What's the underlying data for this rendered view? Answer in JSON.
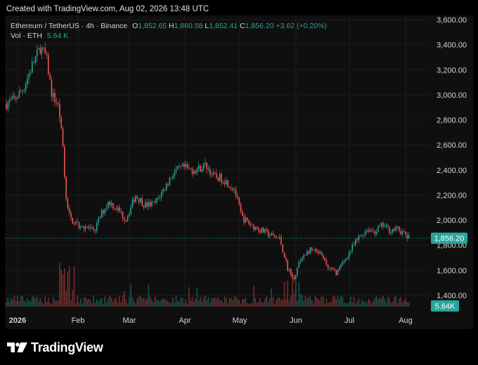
{
  "header": {
    "created_text": "Created with TradingView.com, Aug 02, 2026 13:48 UTC"
  },
  "legend": {
    "symbol": "Ethereum / TetherUS · 4h · Binance",
    "open_label": "O",
    "open": "1,852.65",
    "high_label": "H",
    "high": "1,860.58",
    "low_label": "L",
    "low": "1,852.41",
    "close_label": "C",
    "close": "1,856.20",
    "change": "+3.62 (+0.20%)",
    "volume_label": "Vol · ETH",
    "volume": "5.64 K"
  },
  "colors": {
    "up": "#26a69a",
    "down": "#ef5350",
    "background": "#0f0f0f",
    "grid": "#1c1c1c",
    "axis_text": "#d1d4dc"
  },
  "footer": {
    "logo_text": "TradingView",
    "logo_icon": "tradingview-logo-icon"
  },
  "chart_data": {
    "type": "candlestick",
    "title": "",
    "series": [
      {
        "name": "",
        "x": [
          "Jan 01",
          "Jan 05",
          "Jan 10",
          "Jan 15",
          "Jan 19",
          "Jan 22",
          "Jan 25",
          "Jan 28",
          "Jan 30",
          "Feb 01",
          "Feb 03",
          "Feb 05",
          "Feb 08",
          "Feb 12",
          "Feb 16",
          "Feb 20",
          "Feb 24",
          "Mar 01",
          "Mar 05",
          "Mar 10",
          "Mar 15",
          "Mar 20",
          "Mar 25",
          "Mar 30",
          "Apr 04",
          "Apr 08",
          "Apr 12",
          "Apr 16",
          "Apr 20",
          "Apr 25",
          "May 01",
          "May 05",
          "May 10",
          "May 15",
          "May 20",
          "May 25",
          "May 29",
          "Jun 02",
          "Jun 04",
          "Jun 06",
          "Jun 10",
          "Jun 15",
          "Jun 20",
          "Jun 24",
          "Jun 28",
          "Jul 02",
          "Jul 06",
          "Jul 10",
          "Jul 14",
          "Jul 18",
          "Jul 22",
          "Jul 26",
          "Aug 01"
        ],
        "values": [
          2930,
          2960,
          3050,
          3250,
          3380,
          3300,
          3000,
          2930,
          2750,
          2250,
          2040,
          1990,
          1960,
          1950,
          1900,
          2050,
          2150,
          2080,
          2010,
          2200,
          2120,
          2130,
          2250,
          2380,
          2420,
          2400,
          2410,
          2440,
          2350,
          2330,
          2250,
          2020,
          1960,
          1920,
          1880,
          1850,
          1620,
          1540,
          1650,
          1720,
          1760,
          1730,
          1610,
          1580,
          1680,
          1780,
          1870,
          1930,
          1910,
          1960,
          1920,
          1930,
          1856.2
        ]
      }
    ],
    "x_tick_labels": [
      "2026",
      "Feb",
      "Mar",
      "Apr",
      "May",
      "Jun",
      "Jul",
      "Aug"
    ],
    "y_tick_labels": [
      "1,400.00",
      "1,600.00",
      "1,800.00",
      "2,000.00",
      "2,200.00",
      "2,400.00",
      "2,600.00",
      "2,800.00",
      "3,000.00",
      "3,200.00",
      "3,400.00",
      "3,600.00"
    ],
    "ylim": [
      1400,
      3600
    ],
    "last_price": "1,856.20",
    "volume_label": "5.64K",
    "grid": true
  }
}
